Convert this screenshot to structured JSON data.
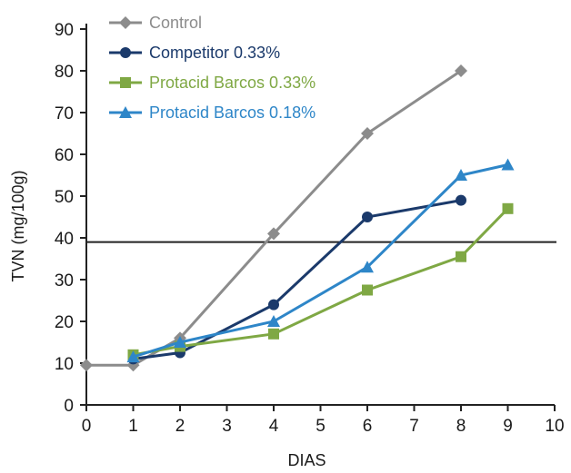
{
  "chart_data": {
    "type": "line",
    "xlabel": "DIAS",
    "ylabel": "TVN (mg/100g)",
    "xlim": [
      0,
      10
    ],
    "ylim": [
      0,
      90
    ],
    "xticks": [
      0,
      1,
      2,
      3,
      4,
      5,
      6,
      7,
      8,
      9,
      10
    ],
    "yticks": [
      0,
      10,
      20,
      30,
      40,
      50,
      60,
      70,
      80,
      90
    ],
    "reference_line_y": 39,
    "grid": false,
    "legend_position": "top-left",
    "series": [
      {
        "name": "Control",
        "color": "#8c8c8c",
        "marker": "diamond",
        "x": [
          0,
          1,
          2,
          4,
          6,
          8
        ],
        "y": [
          9.5,
          9.5,
          16,
          41,
          65,
          80
        ]
      },
      {
        "name": "Competitor 0.33%",
        "color": "#1b3a6b",
        "marker": "circle",
        "x": [
          1,
          2,
          4,
          6,
          8
        ],
        "y": [
          11,
          12.5,
          24,
          45,
          49
        ]
      },
      {
        "name": "Protacid Barcos 0.33%",
        "color": "#7fa844",
        "marker": "square",
        "x": [
          1,
          2,
          4,
          6,
          8,
          9
        ],
        "y": [
          12,
          14,
          17,
          27.5,
          35.5,
          47
        ]
      },
      {
        "name": "Protacid Barcos 0.18%",
        "color": "#2e86c8",
        "marker": "triangle",
        "x": [
          1,
          2,
          4,
          6,
          8,
          9
        ],
        "y": [
          11.5,
          15,
          20,
          33,
          55,
          57.5
        ]
      }
    ]
  }
}
